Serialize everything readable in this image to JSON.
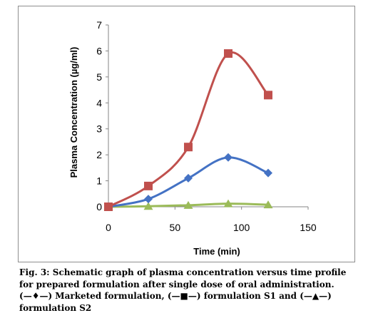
{
  "chart_data": {
    "type": "line",
    "title": "",
    "xlabel": "Time (min)",
    "ylabel": "Plasma Concentration (µg/ml)",
    "xlim": [
      0,
      150
    ],
    "ylim": [
      0,
      7
    ],
    "x_ticks": [
      0,
      50,
      100,
      150
    ],
    "y_ticks": [
      0,
      1,
      2,
      3,
      4,
      5,
      6,
      7
    ],
    "grid": false,
    "legend": "none",
    "series": [
      {
        "color": "#4472C4",
        "marker": "diamond",
        "x": [
          0,
          30,
          60,
          90,
          120
        ],
        "values": [
          0,
          0.3,
          1.1,
          1.9,
          1.3
        ]
      },
      {
        "color": "#C0504D",
        "marker": "square",
        "x": [
          0,
          30,
          60,
          90,
          120
        ],
        "values": [
          0,
          0.8,
          2.3,
          5.9,
          4.3
        ]
      },
      {
        "color": "#9BBB59",
        "marker": "triangle",
        "x": [
          0,
          30,
          60,
          90,
          120
        ],
        "values": [
          0,
          0.02,
          0.06,
          0.12,
          0.08
        ]
      }
    ]
  },
  "caption": {
    "line1": "Fig. 3: Schematic graph of plasma concentration versus time profile",
    "line2": "for prepared formulation after single dose of oral administration.",
    "part_a_open": "(",
    "part_a_sym": "—♦—",
    "part_a_text": ") Marketed formulation, (",
    "part_b_sym": "—■—",
    "part_b_text": ") formulation S1 and (",
    "part_c_sym": "—▲—",
    "part_c_text": ")",
    "line4": "formulation S2"
  }
}
